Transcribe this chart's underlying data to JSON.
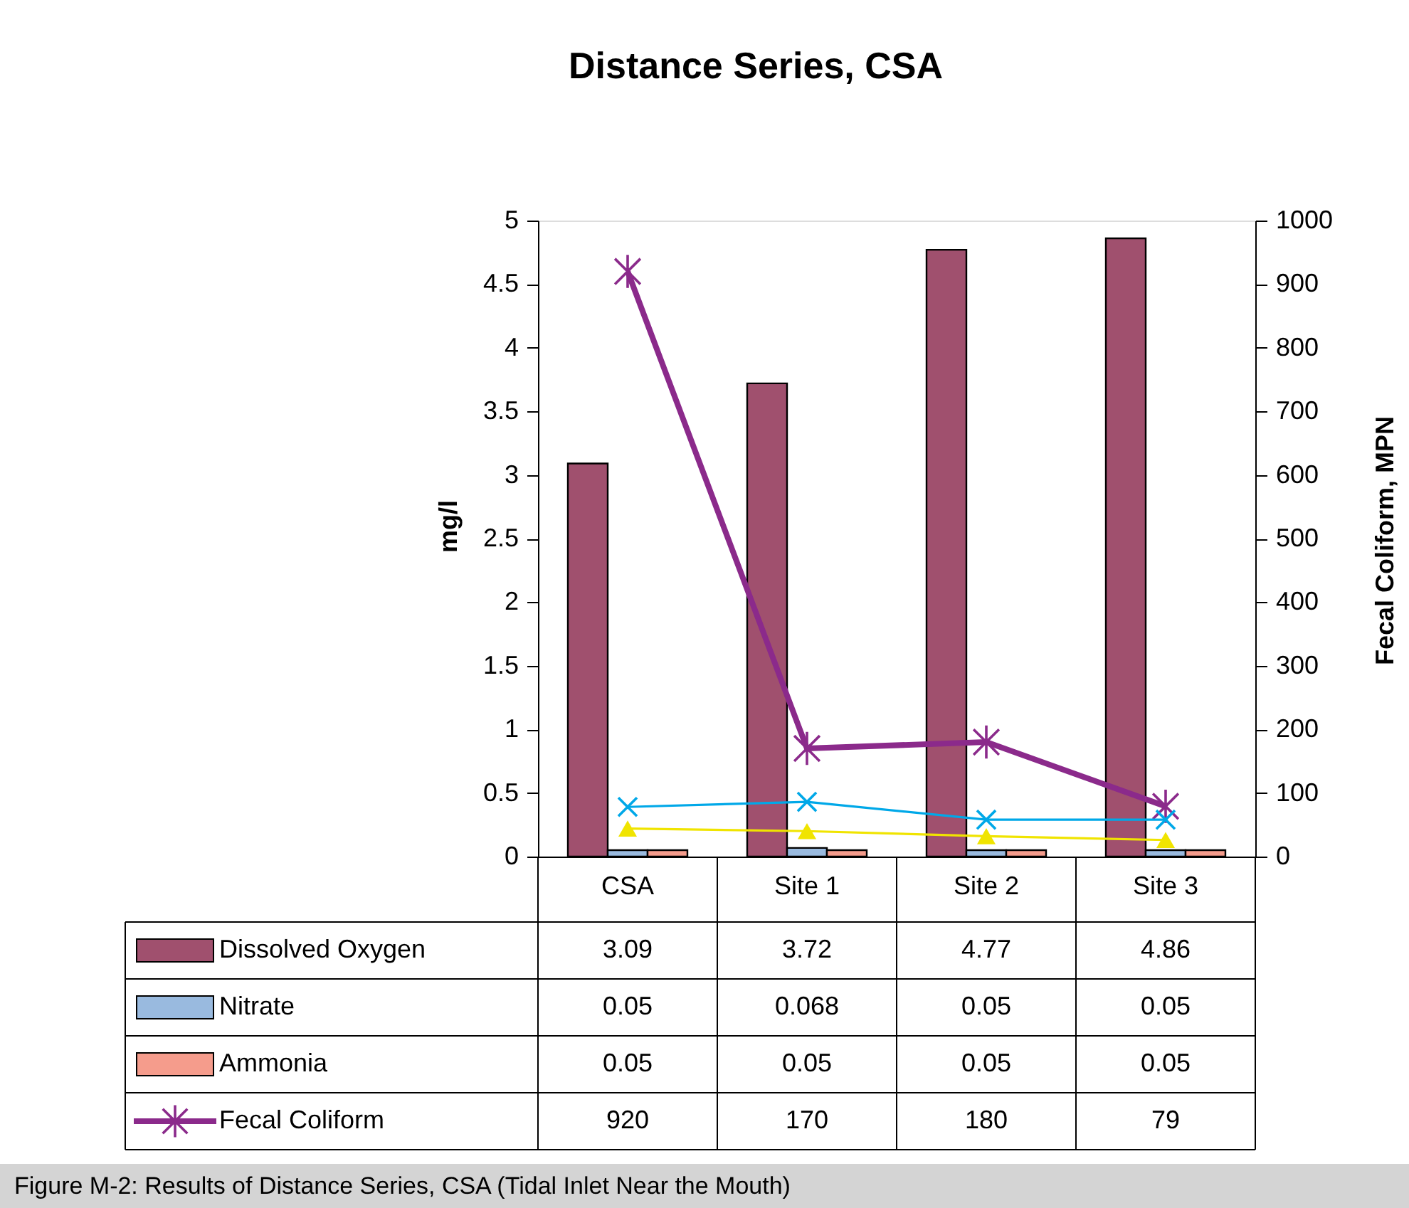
{
  "chart_data": {
    "type": "bar",
    "title": "Distance Series, CSA",
    "ylabel": "mg/l",
    "y2label": "Fecal Coliform, MPN",
    "categories": [
      "CSA",
      "Site 1",
      "Site 2",
      "Site 3"
    ],
    "series": [
      {
        "name": "Dissolved Oxygen",
        "color": "#a0506e",
        "values": [
          3.09,
          3.72,
          4.77,
          4.86
        ],
        "value_labels": [
          "3.09",
          "3.72",
          "4.77",
          "4.86"
        ]
      },
      {
        "name": "Nitrate",
        "color": "#99badf",
        "values": [
          0.05,
          0.068,
          0.05,
          0.05
        ],
        "value_labels": [
          "0.05",
          "0.068",
          "0.05",
          "0.05"
        ]
      },
      {
        "name": "Ammonia",
        "color": "#f59c8c",
        "values": [
          0.05,
          0.05,
          0.05,
          0.05
        ],
        "value_labels": [
          "0.05",
          "0.05",
          "0.05",
          "0.05"
        ]
      },
      {
        "name": "Fecal Coliform",
        "type": "line",
        "axis": "y2",
        "marker": "star",
        "color": "#8b2a8b",
        "values": [
          920,
          170,
          180,
          79
        ],
        "value_labels": [
          "920",
          "170",
          "180",
          "79"
        ]
      },
      {
        "type": "line",
        "marker": "cross",
        "color": "#00a8e8",
        "values": [
          0.39,
          0.43,
          0.29,
          0.29
        ]
      },
      {
        "type": "line",
        "marker": "triangle",
        "color": "#f0e400",
        "values": [
          0.22,
          0.2,
          0.16,
          0.13
        ]
      }
    ],
    "ylim": [
      0,
      5
    ],
    "yticks": [
      0,
      0.5,
      1,
      1.5,
      2,
      2.5,
      3,
      3.5,
      4,
      4.5,
      5
    ],
    "y2lim": [
      0,
      1000
    ],
    "y2ticks": [
      0,
      100,
      200,
      300,
      400,
      500,
      600,
      700,
      800,
      900,
      1000
    ],
    "grid": false,
    "legend": "bottom",
    "annotations": [
      "Figure M-2: Results of Distance Series, CSA (Tidal Inlet Near the Mouth)"
    ]
  }
}
